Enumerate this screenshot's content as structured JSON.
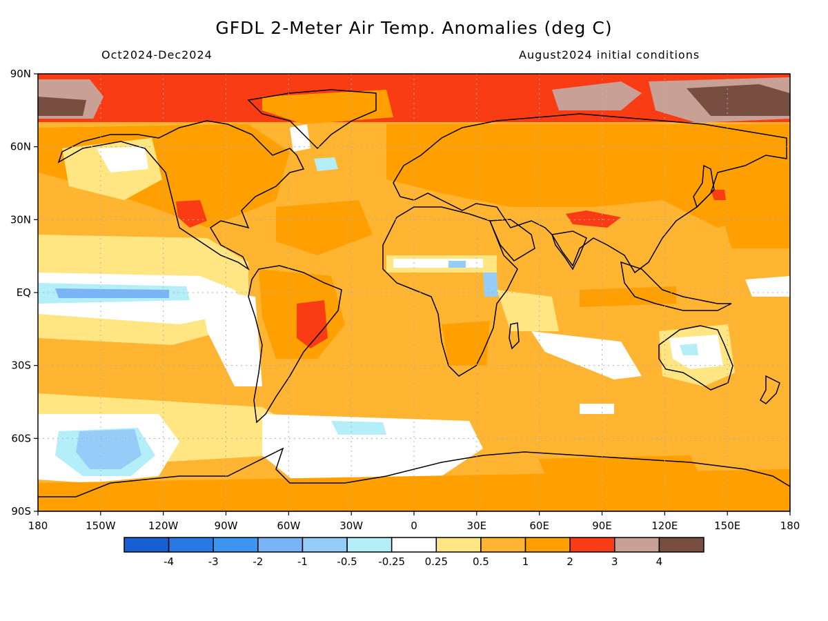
{
  "title": "GFDL 2-Meter Air Temp. Anomalies (deg C)",
  "subtitle_left": "Oct2024-Dec2024",
  "subtitle_right": "August2024 initial conditions",
  "map": {
    "lat_ticks": [
      "90N",
      "60N",
      "30N",
      "EQ",
      "30S",
      "60S",
      "90S"
    ],
    "lon_ticks": [
      "180",
      "150W",
      "120W",
      "90W",
      "60W",
      "30W",
      "0",
      "30E",
      "60E",
      "90E",
      "120E",
      "150E",
      "180"
    ],
    "grid": true
  },
  "colorbar": {
    "colors": [
      "#1660d2",
      "#2878e6",
      "#3c96f0",
      "#78b4f7",
      "#96ccf8",
      "#b4eef8",
      "#ffffff",
      "#ffe682",
      "#ffb432",
      "#ffa000",
      "#fa3c14",
      "#c8a096",
      "#784e41"
    ],
    "labels": [
      "-4",
      "-3",
      "-2",
      "-1",
      "-0.5",
      "-0.25",
      "0.25",
      "0.5",
      "1",
      "2",
      "3",
      "4"
    ]
  }
}
